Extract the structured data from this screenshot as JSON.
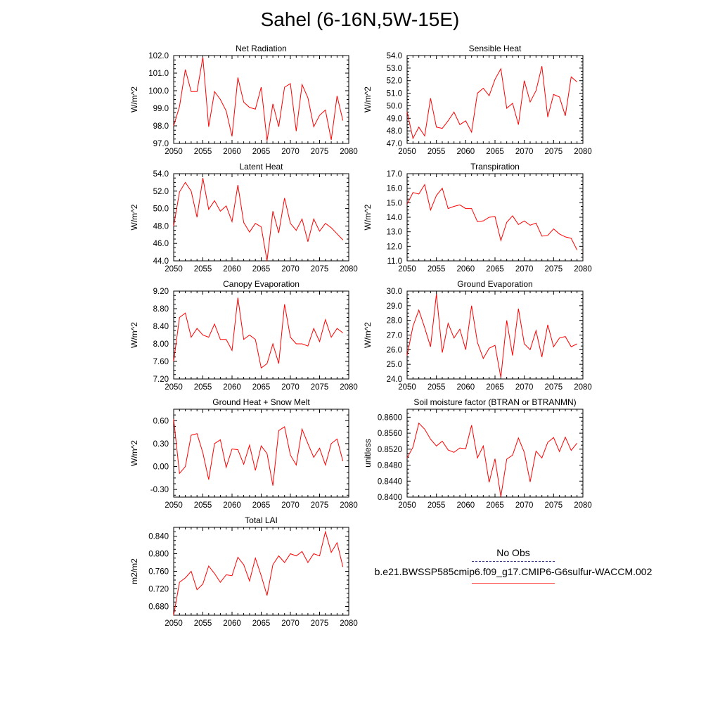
{
  "title": "Sahel (6-16N,5W-15E)",
  "colors": {
    "series": "#ff0000",
    "obs_legend": "#3a3a8c",
    "axis": "#000000"
  },
  "legend": {
    "obs_label": "No Obs",
    "case_label": "b.e21.BWSSP585cmip6.f09_g17.CMIP6-G6sulfur-WACCM.002"
  },
  "chart_data": [
    {
      "type": "line",
      "title": "Net Radiation",
      "ylabel": "W/m^2",
      "xlim": [
        2050,
        2080
      ],
      "ylim": [
        97.0,
        102.0
      ],
      "xticks": [
        "2050",
        "2055",
        "2060",
        "2065",
        "2070",
        "2075",
        "2080"
      ],
      "yticks": [
        "97.0",
        "98.0",
        "99.0",
        "100.0",
        "101.0",
        "102.0"
      ],
      "grid": false,
      "x": [
        2050,
        2051,
        2052,
        2053,
        2054,
        2055,
        2056,
        2057,
        2058,
        2059,
        2060,
        2061,
        2062,
        2063,
        2064,
        2065,
        2066,
        2067,
        2068,
        2069,
        2070,
        2071,
        2072,
        2073,
        2074,
        2075,
        2076,
        2077,
        2078,
        2079
      ],
      "series": [
        {
          "values": [
            98.0,
            99.1,
            101.2,
            99.95,
            99.95,
            101.9,
            97.95,
            99.95,
            99.5,
            98.85,
            97.4,
            100.75,
            99.35,
            99.05,
            98.95,
            100.2,
            97.15,
            99.25,
            97.95,
            100.2,
            100.4,
            97.7,
            100.35,
            99.6,
            97.95,
            98.6,
            98.9,
            97.2,
            99.7,
            98.3
          ]
        }
      ]
    },
    {
      "type": "line",
      "title": "Sensible Heat",
      "ylabel": "W/m^2",
      "xlim": [
        2050,
        2080
      ],
      "ylim": [
        47.0,
        54.0
      ],
      "xticks": [
        "2050",
        "2055",
        "2060",
        "2065",
        "2070",
        "2075",
        "2080"
      ],
      "yticks": [
        "47.0",
        "48.0",
        "49.0",
        "50.0",
        "51.0",
        "52.0",
        "53.0",
        "54.0"
      ],
      "grid": false,
      "x": [
        2050,
        2051,
        2052,
        2053,
        2054,
        2055,
        2056,
        2057,
        2058,
        2059,
        2060,
        2061,
        2062,
        2063,
        2064,
        2065,
        2066,
        2067,
        2068,
        2069,
        2070,
        2071,
        2072,
        2073,
        2074,
        2075,
        2076,
        2077,
        2078,
        2079
      ],
      "series": [
        {
          "values": [
            49.5,
            47.4,
            48.3,
            47.6,
            50.6,
            48.3,
            48.2,
            48.8,
            49.5,
            48.5,
            48.8,
            47.9,
            51.0,
            51.4,
            50.8,
            52.1,
            52.95,
            49.8,
            50.2,
            48.5,
            52.0,
            50.3,
            51.2,
            53.15,
            49.1,
            50.9,
            50.7,
            49.2,
            52.3,
            51.9
          ]
        }
      ]
    },
    {
      "type": "line",
      "title": "Latent Heat",
      "ylabel": "W/m^2",
      "xlim": [
        2050,
        2080
      ],
      "ylim": [
        44.0,
        54.0
      ],
      "xticks": [
        "2050",
        "2055",
        "2060",
        "2065",
        "2070",
        "2075",
        "2080"
      ],
      "yticks": [
        "44.0",
        "46.0",
        "48.0",
        "50.0",
        "52.0",
        "54.0"
      ],
      "grid": false,
      "x": [
        2050,
        2051,
        2052,
        2053,
        2054,
        2055,
        2056,
        2057,
        2058,
        2059,
        2060,
        2061,
        2062,
        2063,
        2064,
        2065,
        2066,
        2067,
        2068,
        2069,
        2070,
        2071,
        2072,
        2073,
        2074,
        2075,
        2076,
        2077,
        2078,
        2079
      ],
      "series": [
        {
          "values": [
            48.0,
            51.9,
            53.0,
            52.0,
            49.0,
            53.5,
            49.9,
            50.9,
            49.7,
            50.3,
            48.5,
            52.7,
            48.4,
            47.3,
            48.3,
            47.9,
            44.0,
            49.7,
            47.2,
            51.2,
            48.3,
            47.5,
            48.8,
            46.2,
            48.8,
            47.4,
            48.3,
            47.8,
            47.1,
            46.4
          ]
        }
      ]
    },
    {
      "type": "line",
      "title": "Transpiration",
      "ylabel": "W/m^2",
      "xlim": [
        2050,
        2080
      ],
      "ylim": [
        11.0,
        17.0
      ],
      "xticks": [
        "2050",
        "2055",
        "2060",
        "2065",
        "2070",
        "2075",
        "2080"
      ],
      "yticks": [
        "11.0",
        "12.0",
        "13.0",
        "14.0",
        "15.0",
        "16.0",
        "17.0"
      ],
      "grid": false,
      "x": [
        2050,
        2051,
        2052,
        2053,
        2054,
        2055,
        2056,
        2057,
        2058,
        2059,
        2060,
        2061,
        2062,
        2063,
        2064,
        2065,
        2066,
        2067,
        2068,
        2069,
        2070,
        2071,
        2072,
        2073,
        2074,
        2075,
        2076,
        2077,
        2078,
        2079
      ],
      "series": [
        {
          "values": [
            14.9,
            15.7,
            15.6,
            16.25,
            14.5,
            15.5,
            16.0,
            14.6,
            14.75,
            14.85,
            14.6,
            14.6,
            13.7,
            13.75,
            14.0,
            14.05,
            12.4,
            13.65,
            14.1,
            13.5,
            13.75,
            13.45,
            13.6,
            12.7,
            12.75,
            13.2,
            12.85,
            12.65,
            12.55,
            11.75
          ]
        }
      ]
    },
    {
      "type": "line",
      "title": "Canopy Evaporation",
      "ylabel": "W/m^2",
      "xlim": [
        2050,
        2080
      ],
      "ylim": [
        7.2,
        9.2
      ],
      "xticks": [
        "2050",
        "2055",
        "2060",
        "2065",
        "2070",
        "2075",
        "2080"
      ],
      "yticks": [
        "7.20",
        "7.60",
        "8.00",
        "8.40",
        "8.80",
        "9.20"
      ],
      "grid": false,
      "x": [
        2050,
        2051,
        2052,
        2053,
        2054,
        2055,
        2056,
        2057,
        2058,
        2059,
        2060,
        2061,
        2062,
        2063,
        2064,
        2065,
        2066,
        2067,
        2068,
        2069,
        2070,
        2071,
        2072,
        2073,
        2074,
        2075,
        2076,
        2077,
        2078,
        2079
      ],
      "series": [
        {
          "values": [
            7.6,
            8.6,
            8.7,
            8.15,
            8.35,
            8.2,
            8.15,
            8.45,
            8.1,
            8.1,
            7.85,
            9.05,
            8.1,
            8.2,
            8.1,
            7.45,
            7.55,
            8.0,
            7.55,
            8.9,
            8.15,
            8.0,
            8.0,
            7.95,
            8.35,
            8.05,
            8.55,
            8.15,
            8.35,
            8.25
          ]
        }
      ]
    },
    {
      "type": "line",
      "title": "Ground Evaporation",
      "ylabel": "W/m^2",
      "xlim": [
        2050,
        2080
      ],
      "ylim": [
        24.0,
        30.0
      ],
      "xticks": [
        "2050",
        "2055",
        "2060",
        "2065",
        "2070",
        "2075",
        "2080"
      ],
      "yticks": [
        "24.0",
        "25.0",
        "26.0",
        "27.0",
        "28.0",
        "29.0",
        "30.0"
      ],
      "grid": false,
      "x": [
        2050,
        2051,
        2052,
        2053,
        2054,
        2055,
        2056,
        2057,
        2058,
        2059,
        2060,
        2061,
        2062,
        2063,
        2064,
        2065,
        2066,
        2067,
        2068,
        2069,
        2070,
        2071,
        2072,
        2073,
        2074,
        2075,
        2076,
        2077,
        2078,
        2079
      ],
      "series": [
        {
          "values": [
            25.6,
            27.6,
            28.7,
            27.5,
            26.2,
            29.8,
            25.8,
            27.8,
            26.8,
            27.4,
            26.0,
            29.0,
            26.5,
            25.4,
            26.1,
            26.3,
            24.1,
            28.0,
            25.6,
            28.8,
            26.4,
            26.0,
            27.3,
            25.5,
            27.7,
            26.2,
            26.8,
            26.9,
            26.2,
            26.4
          ]
        }
      ]
    },
    {
      "type": "line",
      "title": "Ground Heat + Snow Melt",
      "ylabel": "W/m^2",
      "xlim": [
        2050,
        2080
      ],
      "ylim": [
        -0.4,
        0.75
      ],
      "xticks": [
        "2050",
        "2055",
        "2060",
        "2065",
        "2070",
        "2075",
        "2080"
      ],
      "yticks": [
        "-0.30",
        "0.00",
        "0.30",
        "0.60"
      ],
      "grid": false,
      "x": [
        2050,
        2051,
        2052,
        2053,
        2054,
        2055,
        2056,
        2057,
        2058,
        2059,
        2060,
        2061,
        2062,
        2063,
        2064,
        2065,
        2066,
        2067,
        2068,
        2069,
        2070,
        2071,
        2072,
        2073,
        2074,
        2075,
        2076,
        2077,
        2078,
        2079
      ],
      "series": [
        {
          "values": [
            0.62,
            -0.09,
            0.0,
            0.41,
            0.43,
            0.18,
            -0.17,
            0.3,
            0.35,
            -0.01,
            0.23,
            0.22,
            0.03,
            0.28,
            -0.05,
            0.27,
            0.17,
            -0.25,
            0.47,
            0.52,
            0.15,
            0.02,
            0.49,
            0.3,
            0.12,
            0.24,
            0.02,
            0.3,
            0.36,
            0.07
          ]
        }
      ]
    },
    {
      "type": "line",
      "title": "Soil moisture factor (BTRAN or BTRANMN)",
      "ylabel": "unitless",
      "xlim": [
        2050,
        2080
      ],
      "ylim": [
        0.84,
        0.862
      ],
      "xticks": [
        "2050",
        "2055",
        "2060",
        "2065",
        "2070",
        "2075",
        "2080"
      ],
      "yticks": [
        "0.8400",
        "0.8440",
        "0.8480",
        "0.8520",
        "0.8560",
        "0.8600"
      ],
      "grid": false,
      "x": [
        2050,
        2051,
        2052,
        2053,
        2054,
        2055,
        2056,
        2057,
        2058,
        2059,
        2060,
        2061,
        2062,
        2063,
        2064,
        2065,
        2066,
        2067,
        2068,
        2069,
        2070,
        2071,
        2072,
        2073,
        2074,
        2075,
        2076,
        2077,
        2078,
        2079
      ],
      "series": [
        {
          "values": [
            0.8498,
            0.8525,
            0.8585,
            0.857,
            0.8545,
            0.8528,
            0.854,
            0.8518,
            0.8512,
            0.8523,
            0.8521,
            0.858,
            0.8498,
            0.8528,
            0.8437,
            0.8496,
            0.8401,
            0.8495,
            0.8505,
            0.8548,
            0.8512,
            0.8438,
            0.8515,
            0.8498,
            0.8537,
            0.8549,
            0.8514,
            0.855,
            0.8517,
            0.8535
          ]
        }
      ]
    },
    {
      "type": "line",
      "title": "Total LAI",
      "ylabel": "m2/m2",
      "xlim": [
        2050,
        2080
      ],
      "ylim": [
        0.66,
        0.86
      ],
      "xticks": [
        "2050",
        "2055",
        "2060",
        "2065",
        "2070",
        "2075",
        "2080"
      ],
      "yticks": [
        "0.680",
        "0.720",
        "0.760",
        "0.800",
        "0.840"
      ],
      "grid": false,
      "x": [
        2050,
        2051,
        2052,
        2053,
        2054,
        2055,
        2056,
        2057,
        2058,
        2059,
        2060,
        2061,
        2062,
        2063,
        2064,
        2065,
        2066,
        2067,
        2068,
        2069,
        2070,
        2071,
        2072,
        2073,
        2074,
        2075,
        2076,
        2077,
        2078,
        2079
      ],
      "series": [
        {
          "values": [
            0.66,
            0.735,
            0.745,
            0.76,
            0.718,
            0.731,
            0.772,
            0.755,
            0.735,
            0.752,
            0.75,
            0.792,
            0.775,
            0.738,
            0.79,
            0.75,
            0.705,
            0.775,
            0.795,
            0.78,
            0.8,
            0.795,
            0.805,
            0.78,
            0.8,
            0.795,
            0.85,
            0.803,
            0.825,
            0.77
          ]
        }
      ]
    }
  ]
}
